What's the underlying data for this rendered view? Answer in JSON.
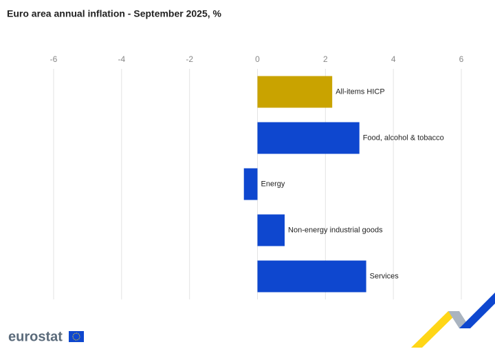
{
  "chart_data": {
    "type": "bar",
    "orientation": "horizontal",
    "title": "Euro area annual inflation - September 2025, %",
    "categories": [
      "All-items HICP",
      "Food, alcohol & tobacco",
      "Energy",
      "Non-energy industrial goods",
      "Services"
    ],
    "values": [
      2.2,
      3.0,
      -0.4,
      0.8,
      3.2
    ],
    "colors": [
      "#c9a300",
      "#0e47cf",
      "#0e47cf",
      "#0e47cf",
      "#0e47cf"
    ],
    "xlim": [
      -6,
      6
    ],
    "xticks": [
      -6,
      -4,
      -2,
      0,
      2,
      4,
      6
    ],
    "grid": true
  },
  "footer": {
    "logo": "eurostat"
  }
}
